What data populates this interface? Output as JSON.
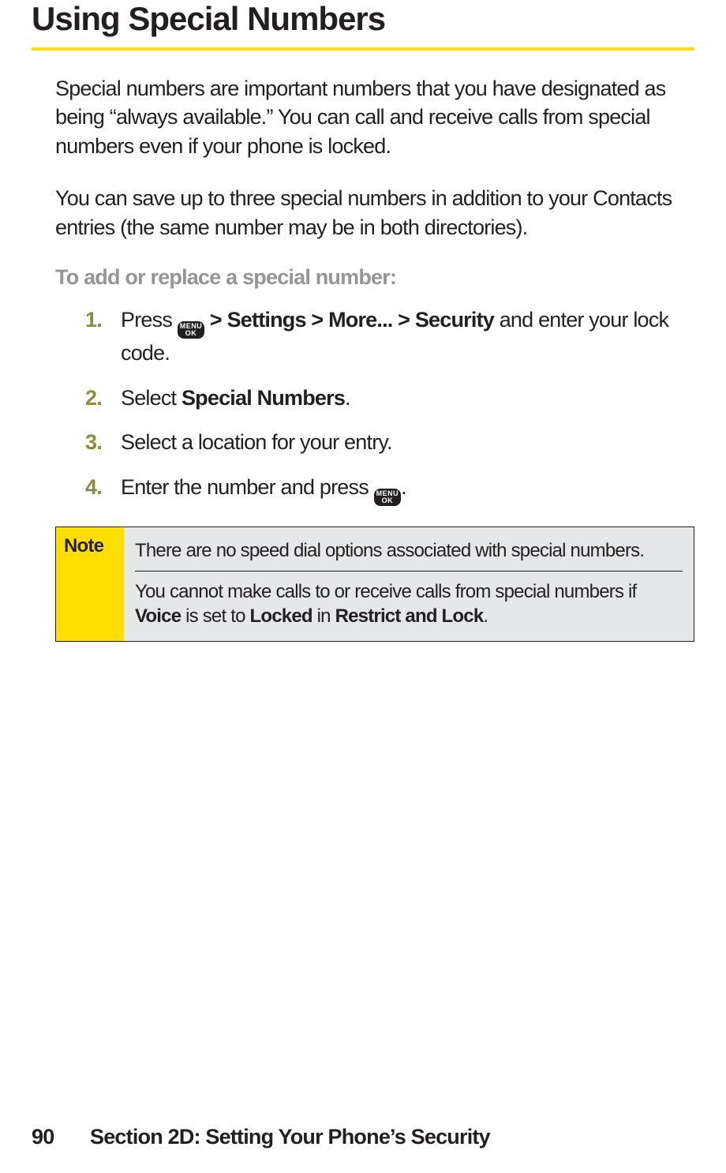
{
  "colors": {
    "accent_yellow": "#ffde00",
    "text": "#231f20",
    "subhead_gray": "#939598",
    "step_num": "#8a8c3f",
    "note_bg": "#e6e7e8",
    "note_label_bg": "#ffde00",
    "page_bg": "#ffffff"
  },
  "typography": {
    "title_fontsize": 42,
    "body_fontsize": 27,
    "note_fontsize": 24
  },
  "title": "Using Special Numbers",
  "intro1": "Special numbers are important numbers that you have designated as being “always available.” You can call and receive calls from special numbers even if your phone is locked.",
  "intro2": "You can save up to three special numbers in addition to your Contacts entries (the same number may be in both directories).",
  "subhead": "To add or replace a special number:",
  "steps": {
    "s1": {
      "num": "1.",
      "pre": "Press ",
      "bold": " > Settings > More... > Security ",
      "post": "and enter your lock code."
    },
    "s2": {
      "num": "2.",
      "pre": "Select ",
      "bold": "Special Numbers",
      "post": "."
    },
    "s3": {
      "num": "3.",
      "text": "Select a location for your entry."
    },
    "s4": {
      "num": "4.",
      "pre": "Enter the number and press ",
      "post": "."
    }
  },
  "menu_key": {
    "line1": "MENU",
    "line2": "OK"
  },
  "note": {
    "label": "Note",
    "item1": "There are no speed dial options associated with special numbers.",
    "item2_pre": "You cannot make calls to or receive calls from special numbers if ",
    "item2_b1": "Voice",
    "item2_mid1": " is set to ",
    "item2_b2": "Locked",
    "item2_mid2": " in ",
    "item2_b3": "Restrict and Lock",
    "item2_post": "."
  },
  "footer": {
    "page_number": "90",
    "section": "Section 2D: Setting Your Phone’s Security"
  }
}
